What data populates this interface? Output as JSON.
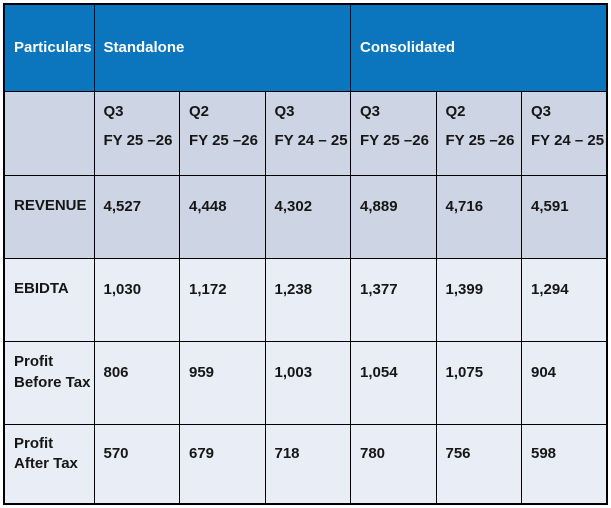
{
  "table": {
    "header": {
      "particulars_label": "Particulars",
      "groups": [
        {
          "label": "Standalone"
        },
        {
          "label": "Consolidated"
        }
      ]
    },
    "subheader": {
      "columns": [
        {
          "quarter": "Q3",
          "fiscal_year": "FY 25 –26"
        },
        {
          "quarter": "Q2",
          "fiscal_year": "FY 25 –26"
        },
        {
          "quarter": "Q3",
          "fiscal_year": "FY 24 – 25"
        },
        {
          "quarter": "Q3",
          "fiscal_year": "FY 25 –26"
        },
        {
          "quarter": "Q2",
          "fiscal_year": "FY 25 –26"
        },
        {
          "quarter": "Q3",
          "fiscal_year": "FY 24 – 25"
        }
      ]
    },
    "rows": [
      {
        "label": "REVENUE",
        "values": [
          "4,527",
          "4,448",
          "4,302",
          "4,889",
          "4,716",
          "4,591"
        ]
      },
      {
        "label": "EBIDTA",
        "values": [
          "1,030",
          "1,172",
          "1,238",
          "1,377",
          "1,399",
          "1,294"
        ]
      },
      {
        "label": "Profit Before Tax",
        "values": [
          "806",
          "959",
          "1,003",
          "1,054",
          "1,075",
          "904"
        ]
      },
      {
        "label": "Profit After Tax",
        "values": [
          "570",
          "679",
          "718",
          "780",
          "756",
          "598"
        ]
      }
    ]
  },
  "chart_data": {
    "type": "table",
    "row_header": "Particulars",
    "column_groups": [
      "Standalone",
      "Consolidated"
    ],
    "columns": [
      "Q3 FY 25 –26",
      "Q2 FY 25 –26",
      "Q3 FY 24 – 25",
      "Q3 FY 25 –26",
      "Q2 FY 25 –26",
      "Q3 FY 24 – 25"
    ],
    "rows": [
      {
        "label": "REVENUE",
        "values": [
          4527,
          4448,
          4302,
          4889,
          4716,
          4591
        ]
      },
      {
        "label": "EBIDTA",
        "values": [
          1030,
          1172,
          1238,
          1377,
          1399,
          1294
        ]
      },
      {
        "label": "Profit Before Tax",
        "values": [
          806,
          959,
          1003,
          1054,
          1075,
          904
        ]
      },
      {
        "label": "Profit After Tax",
        "values": [
          570,
          679,
          718,
          780,
          756,
          598
        ]
      }
    ]
  },
  "colors": {
    "header_blue": "#0b76bd",
    "row_dark": "#cdd4e3",
    "row_light": "#e9edf5",
    "border": "#000000",
    "header_text": "#ffffff",
    "body_text": "#161616"
  }
}
